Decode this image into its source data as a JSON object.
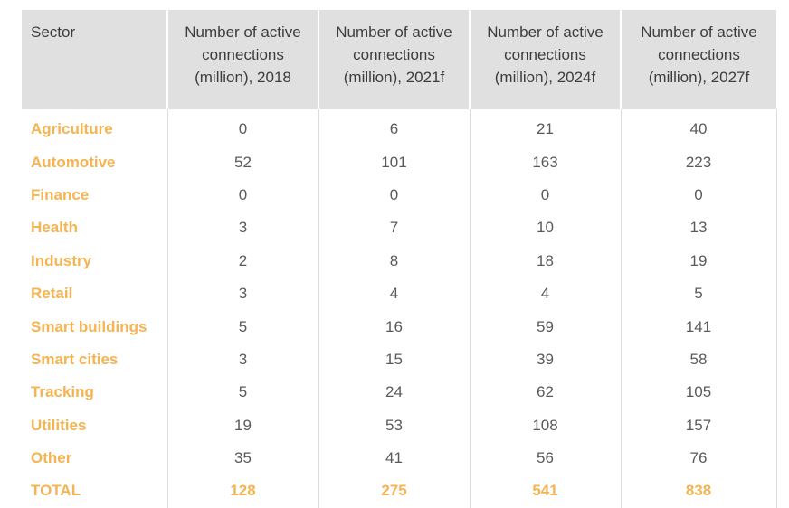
{
  "table": {
    "headers": [
      "Sector",
      "Number of active connections (million), 2018",
      "Number of active connections (million), 2021f",
      "Number of active connections (million), 2024f",
      "Number of active connections (million), 2027f"
    ],
    "header_lines": [
      [
        "Sector"
      ],
      [
        "Number of active",
        "connections",
        "(million), 2018"
      ],
      [
        "Number of active",
        "connections",
        "(million), 2021f"
      ],
      [
        "Number of active",
        "connections",
        "(million), 2024f"
      ],
      [
        "Number of active",
        "connections",
        "(million), 2027f"
      ]
    ],
    "rows": [
      [
        "Agriculture",
        "0",
        "6",
        "21",
        "40"
      ],
      [
        "Automotive",
        "52",
        "101",
        "163",
        "223"
      ],
      [
        "Finance",
        "0",
        "0",
        "0",
        "0"
      ],
      [
        "Health",
        "3",
        "7",
        "10",
        "13"
      ],
      [
        "Industry",
        "2",
        "8",
        "18",
        "19"
      ],
      [
        "Retail",
        "3",
        "4",
        "4",
        "5"
      ],
      [
        "Smart buildings",
        "5",
        "16",
        "59",
        "141"
      ],
      [
        "Smart cities",
        "3",
        "15",
        "39",
        "58"
      ],
      [
        "Tracking",
        "5",
        "24",
        "62",
        "105"
      ],
      [
        "Utilities",
        "19",
        "53",
        "108",
        "157"
      ],
      [
        "Other",
        "35",
        "41",
        "56",
        "76"
      ]
    ],
    "total": [
      "TOTAL",
      "128",
      "275",
      "541",
      "838"
    ]
  },
  "colors": {
    "header_bg": "#e0e0e0",
    "header_text": "#3d3d3d",
    "accent": "#f5b351",
    "cell_text": "#5a5a5a",
    "divider": "#dcdcdc"
  }
}
